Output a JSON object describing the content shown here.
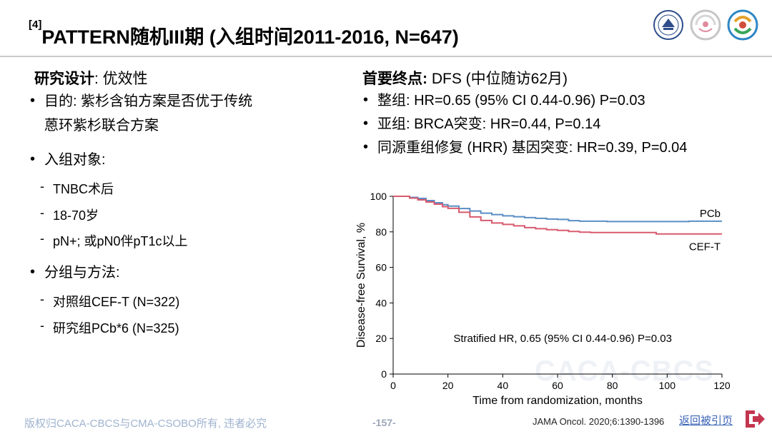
{
  "header": {
    "ref": "[4]",
    "title": "PATTERN随机III期 (入组时间2011-2016, N=647)"
  },
  "left": {
    "design_label": "研究设计",
    "design_value": ": 优效性",
    "purpose_l1": "目的: 紫杉含铂方案是否优于传统",
    "purpose_l2": "蒽环紫杉联合方案",
    "subjects": "入组对象:",
    "subject_items": [
      "TNBC术后",
      "18-70岁",
      "pN+; 或pN0伴pT1c以上"
    ],
    "grouping": "分组与方法:",
    "group_items": [
      "对照组CEF-T (N=322)",
      "研究组PCb*6 (N=325)"
    ]
  },
  "right": {
    "endpoint_label": "首要终点:",
    "endpoint_value": " DFS (中位随访62月)",
    "results": [
      "整组: HR=0.65 (95% CI 0.44-0.96) P=0.03",
      "亚组: BRCA突变: HR=0.44, P=0.14",
      "同源重组修复 (HRR) 基因突变: HR=0.39, P=0.04"
    ]
  },
  "chart_data": {
    "type": "line",
    "title": "",
    "xlabel": "Time from randomization, months",
    "ylabel": "Disease-free Survival, %",
    "xlim": [
      0,
      120
    ],
    "ylim": [
      0,
      100
    ],
    "xticks": [
      0,
      20,
      40,
      60,
      80,
      100,
      120
    ],
    "yticks": [
      0,
      20,
      40,
      60,
      80,
      100
    ],
    "annotation": "Stratified HR, 0.65 (95% CI 0.44-0.96) P=0.03",
    "series": [
      {
        "name": "PCb",
        "color": "#5b8ec4",
        "points": [
          [
            0,
            100
          ],
          [
            3,
            100
          ],
          [
            6,
            99.4
          ],
          [
            9,
            98.8
          ],
          [
            12,
            97.6
          ],
          [
            15,
            96.4
          ],
          [
            18,
            95.3
          ],
          [
            20,
            94.5
          ],
          [
            24,
            93.1
          ],
          [
            28,
            91.7
          ],
          [
            32,
            90.5
          ],
          [
            36,
            89.7
          ],
          [
            40,
            89.0
          ],
          [
            44,
            88.5
          ],
          [
            48,
            88.0
          ],
          [
            52,
            87.6
          ],
          [
            56,
            87.2
          ],
          [
            60,
            87.0
          ],
          [
            64,
            86.3
          ],
          [
            68,
            86.0
          ],
          [
            72,
            86.0
          ],
          [
            78,
            85.8
          ],
          [
            84,
            85.8
          ],
          [
            90,
            85.8
          ],
          [
            96,
            85.8
          ],
          [
            102,
            85.8
          ],
          [
            108,
            86.0
          ],
          [
            114,
            86.0
          ],
          [
            120,
            86.0
          ]
        ]
      },
      {
        "name": "CEF-T",
        "color": "#d85a6e",
        "points": [
          [
            0,
            100
          ],
          [
            3,
            100
          ],
          [
            6,
            99.0
          ],
          [
            9,
            98.0
          ],
          [
            12,
            96.8
          ],
          [
            15,
            95.6
          ],
          [
            18,
            94.2
          ],
          [
            20,
            93.2
          ],
          [
            24,
            91.0
          ],
          [
            28,
            88.4
          ],
          [
            32,
            86.4
          ],
          [
            36,
            85.0
          ],
          [
            40,
            84.2
          ],
          [
            44,
            83.4
          ],
          [
            48,
            82.4
          ],
          [
            52,
            81.8
          ],
          [
            56,
            81.2
          ],
          [
            60,
            80.8
          ],
          [
            64,
            80.2
          ],
          [
            68,
            79.8
          ],
          [
            72,
            79.6
          ],
          [
            78,
            79.6
          ],
          [
            84,
            79.6
          ],
          [
            90,
            79.6
          ],
          [
            96,
            78.8
          ],
          [
            102,
            78.8
          ],
          [
            108,
            78.8
          ],
          [
            114,
            78.8
          ],
          [
            120,
            78.8
          ]
        ]
      }
    ],
    "series_labels": [
      "PCb",
      "CEF-T"
    ]
  },
  "footer": {
    "copyright": "版权归CACA-CBCS与CMA-CSOBO所有, 违者必究",
    "page": "-157-",
    "citation": "JAMA Oncol. 2020;6:1390-1396",
    "back_link": "返回被引页"
  },
  "colors": {
    "pcb": "#5b8ec4",
    "ceft": "#d85a6e",
    "footer_text": "#9fb3cf",
    "link": "#3b64b7",
    "exit_icon": "#c4364f"
  },
  "icons": [
    "society-logo-icon",
    "bcs-logo-icon",
    "cbcs-logo-icon",
    "exit-arrow-icon"
  ]
}
